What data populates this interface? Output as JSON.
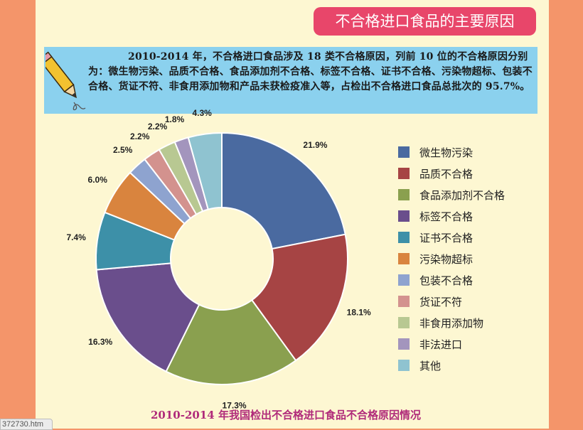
{
  "header": {
    "title": "不合格进口食品的主要原因"
  },
  "intro": {
    "text": "2010-2014 年，不合格进口食品涉及 18 类不合格原因，列前 10 位的不合格原因分别为：微生物污染、品质不合格、食品添加剂不合格、标签不合格、证书不合格、污染物超标、包装不合格、货证不符、非食用添加物和产品未获检疫准入等，占检出不合格进口食品总批次的 95.7%。"
  },
  "chart_data": {
    "type": "pie",
    "title": "2010-2014 年我国检出不合格进口食品不合格原因情况",
    "donut": true,
    "legend_position": "right",
    "categories": [
      "微生物污染",
      "品质不合格",
      "食品添加剂不合格",
      "标签不合格",
      "证书不合格",
      "污染物超标",
      "包装不合格",
      "货证不符",
      "非食用添加物",
      "非法进口",
      "其他"
    ],
    "values": [
      21.9,
      18.1,
      17.3,
      16.3,
      7.4,
      6.0,
      2.5,
      2.2,
      2.2,
      1.8,
      4.3
    ],
    "value_labels": [
      "21.9%",
      "18.1%",
      "17.3%",
      "16.3%",
      "7.4%",
      "6.0%",
      "2.5%",
      "2.2%",
      "2.2%",
      "1.8%",
      "4.3%"
    ],
    "colors": [
      "#4a6aa0",
      "#a64444",
      "#8aa04f",
      "#6a4e8c",
      "#3d90a8",
      "#d9843e",
      "#8ea3cf",
      "#d3928e",
      "#b8c892",
      "#a395bd",
      "#8fc3d0"
    ]
  },
  "status": {
    "url_fragment": "372730.htm"
  }
}
